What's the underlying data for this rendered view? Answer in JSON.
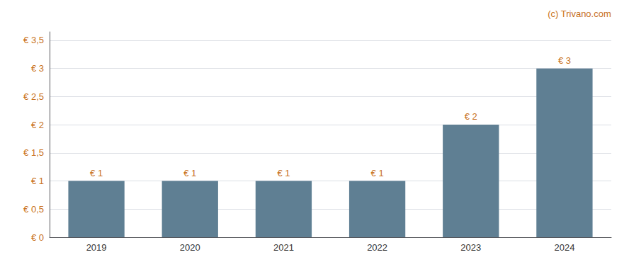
{
  "chart_data": {
    "type": "bar",
    "categories": [
      "2019",
      "2020",
      "2021",
      "2022",
      "2023",
      "2024"
    ],
    "values": [
      1.0,
      1.0,
      1.0,
      1.0,
      2.0,
      3.0
    ],
    "value_labels": [
      "€ 1",
      "€ 1",
      "€ 1",
      "€ 1",
      "€ 2",
      "€ 3"
    ],
    "data_labels": true,
    "color": "#5f7f93",
    "ylim": [
      0,
      3.65
    ],
    "yticks": [
      {
        "value": 0,
        "label": "€ 0"
      },
      {
        "value": 0.5,
        "label": "€ 0,5"
      },
      {
        "value": 1.0,
        "label": "€ 1"
      },
      {
        "value": 1.5,
        "label": "€ 1,5"
      },
      {
        "value": 2.0,
        "label": "€ 2"
      },
      {
        "value": 2.5,
        "label": "€ 2,5"
      },
      {
        "value": 3.0,
        "label": "€ 3"
      },
      {
        "value": 3.5,
        "label": "€ 3,5"
      }
    ],
    "grid": true,
    "annotations": [
      "(c) Trivano.com"
    ]
  }
}
